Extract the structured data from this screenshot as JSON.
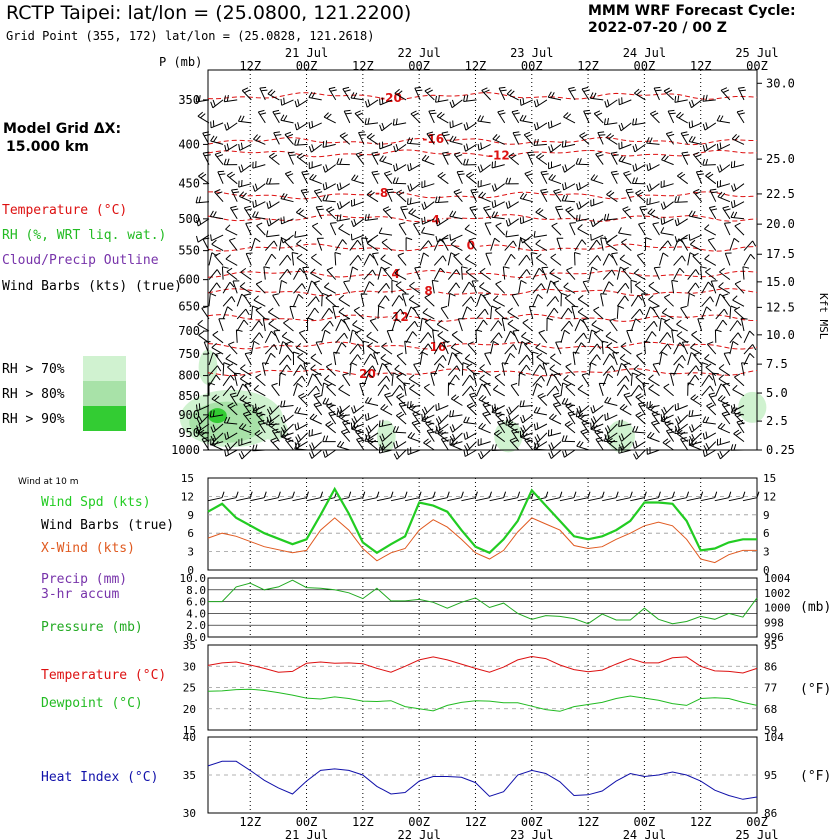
{
  "header": {
    "title": "RCTP Taipei:  lat/lon = (25.0800, 121.2200)",
    "grid_point": "Grid Point (355, 172) lat/lon = (25.0828, 121.2618)",
    "cycle_line1": "MMM WRF Forecast Cycle:",
    "cycle_line2": "2022-07-20 / 00  Z"
  },
  "model_grid": {
    "line1": "Model Grid ΔX:",
    "line2": "15.000 km"
  },
  "legend": {
    "temperature": "Temperature (°C)",
    "rh": "RH (%, WRT liq. wat.)",
    "cloud": "Cloud/Precip Outline",
    "wind": "Wind Barbs (kts) (true)",
    "rh70": "RH > 70%",
    "rh80": "RH > 80%",
    "rh90": "RH > 90%"
  },
  "colors": {
    "temperature": "#dd1111",
    "rh_label": "#22bb22",
    "cloud_label": "#7733aa",
    "rh70": "#d0f2d0",
    "rh80": "#a8e2a8",
    "rh90": "#33cc33",
    "wind_speed": "#22cc22",
    "cross_wind": "#e05a20",
    "pressure": "#22aa22",
    "dewpoint": "#22bb22",
    "heat_index": "#1111aa",
    "grid": "#999999"
  },
  "chart_data": [
    {
      "type": "line",
      "name": "upper-air cross section",
      "xaxis": {
        "top_dates": [
          "21 Jul",
          "22 Jul",
          "23 Jul",
          "24 Jul",
          "25 Jul"
        ],
        "time_labels": [
          "12Z",
          "00Z",
          "12Z",
          "00Z",
          "12Z",
          "00Z",
          "12Z",
          "00Z",
          "12Z",
          "00Z"
        ],
        "hours": [
          12,
          24,
          36,
          48,
          60,
          72,
          84,
          96,
          108,
          120
        ],
        "xlim_hours": [
          3,
          120
        ]
      },
      "yaxis_label": "P (mb)",
      "pressure_levels": [
        1000,
        950,
        900,
        850,
        800,
        750,
        700,
        650,
        600,
        550,
        500,
        450,
        400,
        350
      ],
      "pressure_tick_labels": [
        "1000",
        "950",
        "900",
        "850",
        "800",
        "750",
        "700",
        "650",
        "600",
        "550",
        "500",
        "450",
        "400",
        "350"
      ],
      "ylim_mb": [
        1000,
        320
      ],
      "right_axis_label": "Kft MSL",
      "kft_ticks": [
        {
          "label": "0.25",
          "mb": 1000
        },
        {
          "label": "2.5",
          "mb": 917
        },
        {
          "label": "5.0",
          "mb": 843
        },
        {
          "label": "7.5",
          "mb": 773
        },
        {
          "label": "10.0",
          "mb": 708
        },
        {
          "label": "12.5",
          "mb": 652
        },
        {
          "label": "15.0",
          "mb": 604
        },
        {
          "label": "17.5",
          "mb": 556
        },
        {
          "label": "20.0",
          "mb": 508
        },
        {
          "label": "22.5",
          "mb": 464
        },
        {
          "label": "25.0",
          "mb": 418
        },
        {
          "label": "30.0",
          "mb": 333
        }
      ],
      "isotherms": [
        {
          "label": "-20",
          "mb": 346,
          "label_hour": 42
        },
        {
          "label": "-16",
          "mb": 396,
          "label_hour": 51
        },
        {
          "label": "-12",
          "mb": 411,
          "label_hour": 65
        },
        {
          "label": "-8",
          "mb": 466,
          "label_hour": 40
        },
        {
          "label": "-4",
          "mb": 499,
          "label_hour": 51
        },
        {
          "label": "0",
          "mb": 545,
          "label_hour": 59
        },
        {
          "label": "4",
          "mb": 590,
          "label_hour": 43
        },
        {
          "label": "8",
          "mb": 623,
          "label_hour": 50
        },
        {
          "label": "12",
          "mb": 673,
          "label_hour": 44
        },
        {
          "label": "16",
          "mb": 731,
          "label_hour": 52
        },
        {
          "label": "20",
          "mb": 792,
          "label_hour": 37
        }
      ],
      "rh_regions": [
        {
          "class": "rh70",
          "hour": 8,
          "mb": 910,
          "rx_hours": 11,
          "ry_mb": 75
        },
        {
          "class": "rh80",
          "hour": 7,
          "mb": 920,
          "rx_hours": 8,
          "ry_mb": 55
        },
        {
          "class": "rh90",
          "hour": 5,
          "mb": 902,
          "rx_hours": 2,
          "ry_mb": 20
        },
        {
          "class": "rh70",
          "hour": 17,
          "mb": 940,
          "rx_hours": 3,
          "ry_mb": 30
        },
        {
          "class": "rh70",
          "hour": 3,
          "mb": 780,
          "rx_hours": 2,
          "ry_mb": 40
        },
        {
          "class": "rh70",
          "hour": 41,
          "mb": 960,
          "rx_hours": 2,
          "ry_mb": 45
        },
        {
          "class": "rh70",
          "hour": 67,
          "mb": 960,
          "rx_hours": 3,
          "ry_mb": 45
        },
        {
          "class": "rh70",
          "hour": 91,
          "mb": 960,
          "rx_hours": 3,
          "ry_mb": 45
        },
        {
          "class": "rh70",
          "hour": 119,
          "mb": 880,
          "rx_hours": 3,
          "ry_mb": 40
        }
      ]
    },
    {
      "type": "line",
      "name": "surface wind",
      "header": "Wind at 10 m",
      "labels": {
        "speed": "Wind Spd (kts)",
        "barbs": "Wind Barbs (true)",
        "xwind": "X-Wind (kts)"
      },
      "ylim": [
        0,
        15
      ],
      "yticks": [
        "0",
        "3",
        "6",
        "9",
        "12",
        "15"
      ],
      "x": [
        3,
        6,
        9,
        15,
        21,
        24,
        27,
        30,
        33,
        36,
        39,
        42,
        45,
        48,
        51,
        54,
        57,
        60,
        63,
        66,
        69,
        72,
        75,
        78,
        81,
        84,
        87,
        90,
        93,
        96,
        99,
        102,
        105,
        108,
        111,
        114,
        117,
        120
      ],
      "series": [
        {
          "name": "Wind Spd",
          "values": [
            9.5,
            10.8,
            8.5,
            6,
            4.2,
            5,
            9,
            13.2,
            9.2,
            4.5,
            2.8,
            4.2,
            5.5,
            11,
            10.5,
            9.5,
            6.5,
            3.8,
            2.8,
            5,
            8,
            13,
            10.5,
            8,
            5.5,
            5,
            5.5,
            6.5,
            8,
            11,
            11,
            10.8,
            8,
            3.2,
            3.5,
            4.5,
            5,
            5
          ]
        },
        {
          "name": "X-Wind",
          "values": [
            5.2,
            6,
            5.5,
            3.8,
            2.8,
            3.2,
            6.5,
            8.5,
            6.5,
            3.5,
            1.5,
            2.8,
            3.5,
            6.5,
            8.2,
            7,
            5,
            2.8,
            1.8,
            3.2,
            6.2,
            8.5,
            7.5,
            6.5,
            4,
            3.5,
            3.8,
            5,
            6,
            7.2,
            7.8,
            7.2,
            5,
            1.8,
            1.2,
            2.5,
            3.2,
            3.2
          ]
        }
      ]
    },
    {
      "type": "line",
      "name": "precip and pressure",
      "labels": {
        "precip": "Precip (mm)",
        "accum": "3-hr accum",
        "pressure": "Pressure (mb)",
        "unit_right": "(mb)"
      },
      "precip_ylim": [
        0,
        10
      ],
      "precip_ticks": [
        "0.0",
        "2.0",
        "4.0",
        "6.0",
        "8.0",
        "10.0"
      ],
      "pressure_ylim": [
        996,
        1004
      ],
      "pressure_ticks": [
        "996",
        "998",
        "1000",
        "1002",
        "1004"
      ],
      "x": [
        3,
        6,
        9,
        12,
        15,
        18,
        21,
        24,
        27,
        30,
        33,
        36,
        39,
        42,
        45,
        48,
        51,
        54,
        57,
        60,
        63,
        66,
        69,
        72,
        75,
        78,
        81,
        84,
        87,
        90,
        93,
        96,
        99,
        102,
        105,
        108,
        111,
        114,
        117,
        120
      ],
      "series": [
        {
          "name": "Pressure",
          "values": [
            1000.8,
            1000.8,
            1002.8,
            1003.3,
            1002.4,
            1002.8,
            1003.7,
            1002.7,
            1002.6,
            1002.4,
            1002,
            1001.2,
            1002.6,
            1000.9,
            1000.9,
            1001.1,
            1000.7,
            999.9,
            1000.7,
            1001.3,
            1000,
            1000.6,
            999.2,
            998.4,
            998.9,
            998.8,
            998.5,
            997.8,
            999.1,
            998.3,
            998.3,
            999.9,
            998.4,
            997.8,
            998.1,
            998.8,
            998.4,
            999.2,
            998.7,
            1001.3
          ]
        },
        {
          "name": "Precip",
          "values": [
            0,
            0,
            0,
            0,
            0,
            0,
            0,
            0,
            0,
            0,
            0,
            0,
            0,
            0,
            0,
            0,
            0,
            0,
            0,
            0,
            0,
            0,
            0,
            0,
            0,
            0,
            0,
            0,
            0,
            0,
            0,
            0,
            0,
            0,
            0,
            0,
            0,
            0,
            0,
            0
          ]
        }
      ]
    },
    {
      "type": "line",
      "name": "temperature and dewpoint",
      "labels": {
        "temp": "Temperature (°C)",
        "dew": "Dewpoint (°C)",
        "unit_right": "(°F)"
      },
      "ylim": [
        15,
        35
      ],
      "yticks": [
        "15",
        "20",
        "25",
        "30",
        "35"
      ],
      "f_ticks": [
        "59",
        "68",
        "77",
        "86",
        "95"
      ],
      "x": [
        3,
        6,
        9,
        12,
        15,
        18,
        21,
        24,
        27,
        30,
        33,
        36,
        39,
        42,
        45,
        48,
        51,
        54,
        57,
        60,
        63,
        66,
        69,
        72,
        75,
        78,
        81,
        84,
        87,
        90,
        93,
        96,
        99,
        102,
        105,
        108,
        111,
        114,
        117,
        120
      ],
      "series": [
        {
          "name": "Temperature",
          "values": [
            30.2,
            30.8,
            31,
            30.3,
            29.5,
            28.6,
            28.8,
            30.7,
            31,
            30.7,
            30.8,
            30.6,
            29.5,
            28.6,
            30,
            31.5,
            32.2,
            31.5,
            30.5,
            29.5,
            28.6,
            29.8,
            31.5,
            32.3,
            31.8,
            30.3,
            29.2,
            28.7,
            29.1,
            30.5,
            31.8,
            30.8,
            30.8,
            32,
            32.2,
            30,
            28.9,
            28.8,
            28.4,
            29.5
          ]
        },
        {
          "name": "Dewpoint",
          "values": [
            24.1,
            24.2,
            24.5,
            24.6,
            24.3,
            23.8,
            23.2,
            22.5,
            22.3,
            22.8,
            22.4,
            21.8,
            21.7,
            21.9,
            20.5,
            20,
            19.5,
            20.8,
            21.5,
            21.9,
            21.8,
            21.4,
            21.4,
            20.6,
            19.8,
            19.4,
            20.5,
            21,
            21.5,
            22.4,
            23,
            22.5,
            22,
            21.2,
            20.8,
            22.4,
            22.6,
            22.4,
            21.5,
            20.8
          ]
        }
      ]
    },
    {
      "type": "line",
      "name": "heat index",
      "labels": {
        "heat": "Heat Index (°C)",
        "unit_right": "(°F)"
      },
      "ylim": [
        30,
        40
      ],
      "yticks": [
        "30",
        "35",
        "40"
      ],
      "f_ticks": [
        "86",
        "95",
        "104"
      ],
      "x": [
        3,
        6,
        9,
        12,
        15,
        18,
        21,
        24,
        27,
        30,
        33,
        36,
        39,
        42,
        45,
        48,
        51,
        54,
        57,
        60,
        63,
        66,
        69,
        72,
        75,
        78,
        81,
        84,
        87,
        90,
        93,
        96,
        99,
        102,
        105,
        108,
        111,
        114,
        117,
        120
      ],
      "series": [
        {
          "name": "Heat Index",
          "values": [
            36.2,
            36.8,
            36.8,
            35.6,
            34.3,
            33.3,
            32.5,
            34.2,
            35.6,
            35.8,
            35.6,
            35,
            33.5,
            32.5,
            32.7,
            34.2,
            34.8,
            34.8,
            34.7,
            34,
            32.2,
            32.8,
            35,
            35.6,
            35.2,
            34.1,
            32.3,
            32.4,
            32.9,
            34.2,
            35.2,
            34.8,
            35,
            35.4,
            35,
            34.2,
            33,
            32.3,
            31.8,
            32.1
          ]
        }
      ]
    }
  ]
}
